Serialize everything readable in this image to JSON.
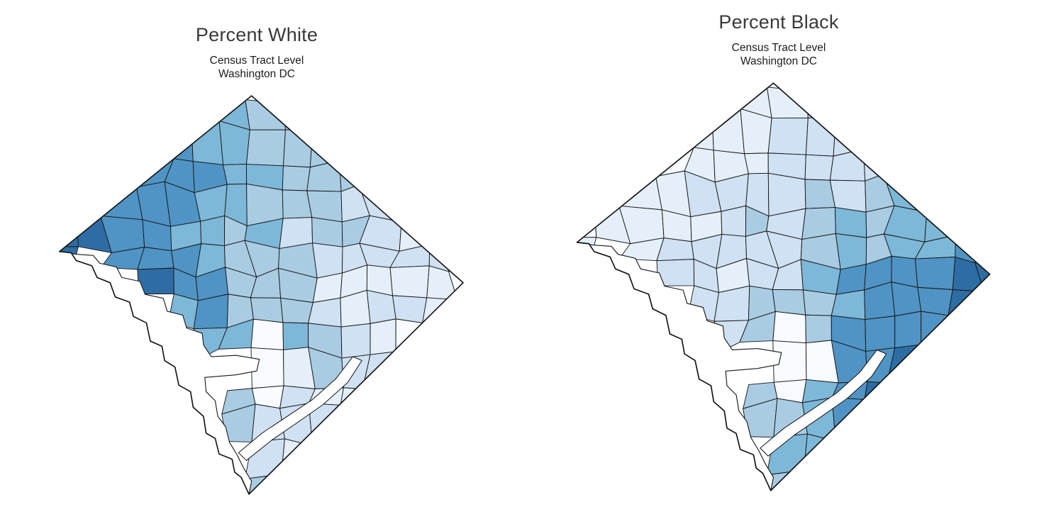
{
  "panels": [
    {
      "id": "percent-white",
      "title": "Percent White",
      "subtitle_line1": "Census Tract Level",
      "subtitle_line2": "Washington DC",
      "pattern": "high_nw",
      "noise_seed": 1234
    },
    {
      "id": "percent-black",
      "title": "Percent Black",
      "subtitle_line1": "Census Tract Level",
      "subtitle_line2": "Washington DC",
      "pattern": "high_se",
      "noise_seed": 9876
    }
  ],
  "map": {
    "geometry_seed": 7,
    "palette": [
      "#f7fbff",
      "#e5eff9",
      "#cfe1f2",
      "#a9cce3",
      "#7db8d8",
      "#4f94c4",
      "#2e6da4"
    ],
    "outline_color": "#161616",
    "water_color": "#ffffff",
    "background": "#ffffff"
  },
  "chart_data": {
    "type": "heatmap",
    "subtype": "choropleth-map-pair",
    "geography": "Washington DC census tracts",
    "maps": [
      {
        "title": "Percent White",
        "subtitle": "Census Tract Level Washington DC",
        "high_value_region": "northwest quadrant (west of Rock Creek Park)",
        "mid_value_region": "north-central and Capitol Hill area",
        "low_value_region": "southeast and east of the Anacostia River"
      },
      {
        "title": "Percent Black",
        "subtitle": "Census Tract Level Washington DC",
        "high_value_region": "southeast and east of the Anacostia River",
        "mid_value_region": "central and northeast tracts",
        "low_value_region": "northwest quadrant"
      }
    ],
    "color_scale": "sequential blues; light = low percent, dark = high percent",
    "legend": "none shown"
  }
}
